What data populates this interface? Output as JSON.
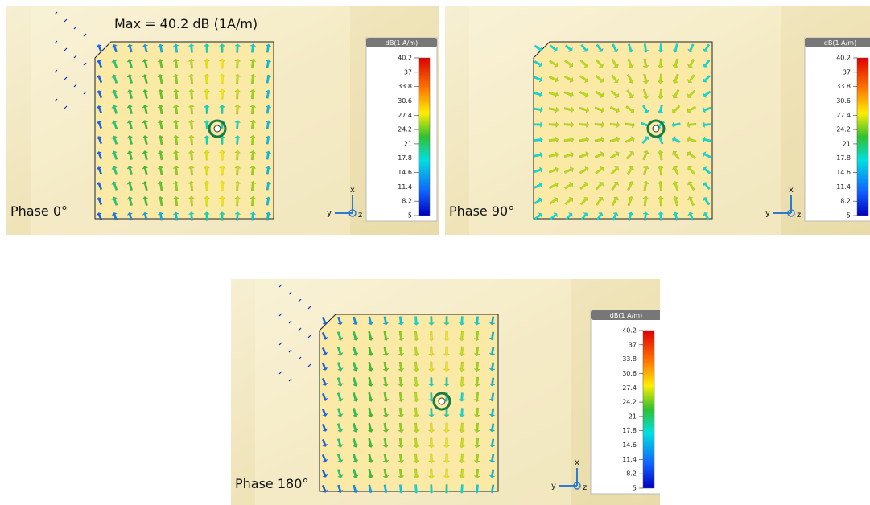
{
  "max_label": "Max = 40.2 dB (1A/m)",
  "panels": [
    {
      "label": "Phase 0°",
      "colorbar": {
        "title": "dB(1 A/m)",
        "ticks": [
          40.2,
          37,
          33.8,
          30.6,
          27.4,
          24.2,
          21,
          17.8,
          14.6,
          11.4,
          8.2,
          5
        ]
      },
      "axes": {
        "x": "x",
        "y": "y",
        "z": "z"
      }
    },
    {
      "label": "Phase 90°",
      "colorbar": {
        "title": "dB(1 A/m)",
        "ticks": [
          40.2,
          37,
          33.8,
          30.6,
          27.4,
          24.2,
          21,
          17.8,
          14.6,
          11.4,
          8.2,
          5
        ]
      },
      "axes": {
        "x": "x",
        "y": "y",
        "z": "z"
      }
    },
    {
      "label": "Phase 180°",
      "colorbar": {
        "title": "dB(1 A/m)",
        "ticks": [
          40.2,
          37,
          33.8,
          30.6,
          27.4,
          24.2,
          21,
          17.8,
          14.6,
          11.4,
          8.2,
          5
        ]
      },
      "axes": {
        "x": "x",
        "y": "y",
        "z": "z"
      }
    }
  ]
}
